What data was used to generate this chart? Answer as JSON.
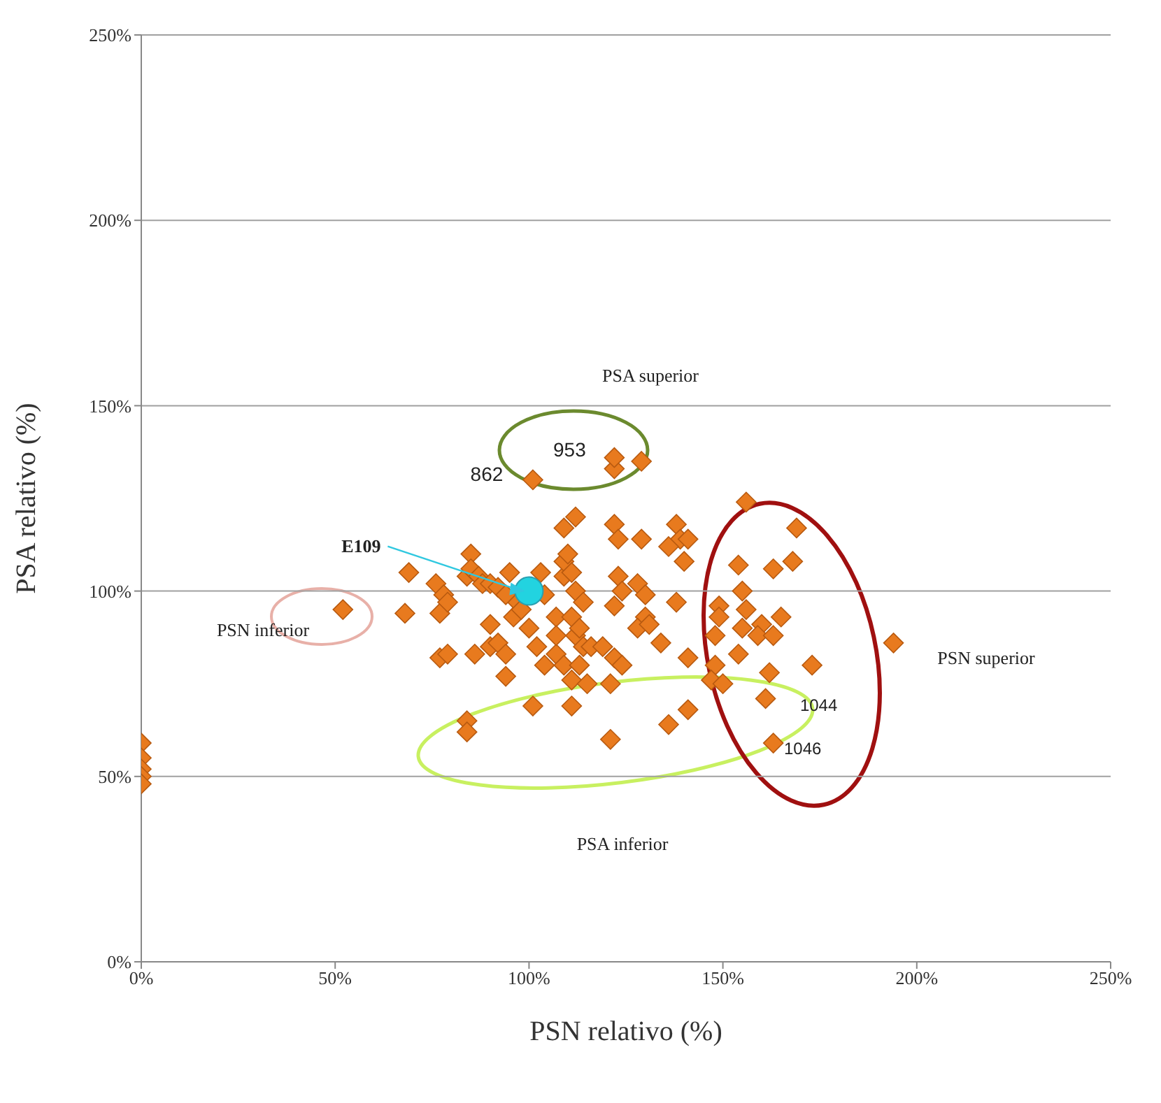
{
  "chart_data": {
    "type": "scatter",
    "xlabel": "PSN relativo (%)",
    "ylabel": "PSA  relativo (%)",
    "xlim": [
      0,
      250
    ],
    "ylim": [
      0,
      250
    ],
    "xticks": [
      {
        "value": 0,
        "label": "0%"
      },
      {
        "value": 50,
        "label": "50%"
      },
      {
        "value": 100,
        "label": "100%"
      },
      {
        "value": 150,
        "label": "150%"
      },
      {
        "value": 200,
        "label": "200%"
      },
      {
        "value": 250,
        "label": "250%"
      }
    ],
    "yticks": [
      {
        "value": 0,
        "label": "0%"
      },
      {
        "value": 50,
        "label": "50%"
      },
      {
        "value": 100,
        "label": "100%"
      },
      {
        "value": 150,
        "label": "150%"
      },
      {
        "value": 200,
        "label": "200%"
      },
      {
        "value": 250,
        "label": "250%"
      }
    ],
    "grid": "y",
    "legend": false,
    "series": [
      {
        "color": "#e87a1e",
        "marker": "diamond",
        "x": [
          0,
          0,
          0,
          0,
          0,
          52,
          68,
          69,
          76,
          77,
          78,
          79,
          77,
          79,
          84,
          85,
          85,
          87,
          88,
          90,
          86,
          90,
          90,
          92,
          94,
          94,
          96,
          97,
          95,
          92,
          94,
          98,
          100,
          101,
          84,
          84,
          101,
          103,
          104,
          107,
          102,
          104,
          107,
          107,
          109,
          109,
          109,
          110,
          111,
          112,
          111,
          112,
          112,
          114,
          113,
          114,
          109,
          113,
          111,
          111,
          115,
          116,
          119,
          122,
          122,
          129,
          122,
          123,
          123,
          124,
          122,
          129,
          128,
          130,
          130,
          128,
          134,
          131,
          122,
          124,
          121,
          121,
          138,
          139,
          136,
          141,
          140,
          138,
          141,
          141,
          136,
          149,
          149,
          148,
          148,
          147,
          150,
          154,
          156,
          156,
          155,
          154,
          160,
          159,
          163,
          163,
          165,
          162,
          168,
          169,
          173,
          194,
          161,
          163,
          155
        ],
        "values": [
          59,
          55,
          52,
          50,
          48,
          95,
          94,
          105,
          102,
          94,
          99,
          97,
          82,
          83,
          104,
          110,
          106,
          104,
          102,
          102,
          83,
          85,
          91,
          86,
          83,
          77,
          93,
          97,
          105,
          101,
          99,
          95,
          90,
          69,
          65,
          62,
          130,
          105,
          99,
          93,
          85,
          80,
          83,
          88,
          104,
          108,
          117,
          110,
          105,
          100,
          93,
          88,
          120,
          97,
          90,
          85,
          80,
          80,
          76,
          69,
          75,
          85,
          85,
          133,
          136,
          135,
          118,
          114,
          104,
          100,
          96,
          114,
          102,
          99,
          93,
          90,
          86,
          91,
          82,
          80,
          75,
          60,
          118,
          114,
          112,
          114,
          108,
          97,
          82,
          68,
          64,
          96,
          93,
          88,
          80,
          76,
          75,
          107,
          124,
          95,
          90,
          83,
          91,
          88,
          88,
          106,
          93,
          78,
          108,
          117,
          80,
          86,
          71,
          59,
          100
        ]
      },
      {
        "color": "#22d3e0",
        "marker": "circle",
        "x": [
          100
        ],
        "values": [
          100
        ]
      }
    ],
    "annotations": [
      "PSA superior",
      "PSN inferior",
      "PSA inferior",
      "PSN superior",
      {
        "text": "E109",
        "x": 100,
        "y": 100
      },
      {
        "text": "862",
        "x": 101,
        "y": 130
      },
      {
        "text": "953",
        "x": 122,
        "y": 133
      },
      {
        "text": "1044",
        "x": 161,
        "y": 71
      },
      {
        "text": "1046",
        "x": 163,
        "y": 59
      }
    ]
  }
}
